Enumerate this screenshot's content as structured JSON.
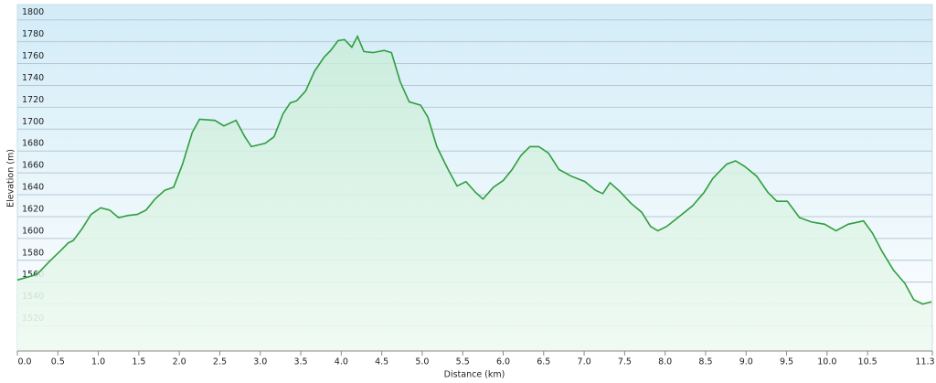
{
  "chart_data": {
    "type": "area",
    "title_y": "Elevation (m)",
    "title_x": "Distance  (km)",
    "color": "#2e9e3e",
    "grid": true,
    "xlim": [
      0,
      11.3
    ],
    "ylim": [
      1497,
      1814
    ],
    "xticks": [
      {
        "value": 0,
        "label": "0.0"
      },
      0.5,
      {
        "value": 1,
        "label": "1.0"
      },
      1.5,
      {
        "value": 2,
        "label": "2.0"
      },
      2.5,
      {
        "value": 3,
        "label": "3.0"
      },
      3.5,
      {
        "value": 4,
        "label": "4.0"
      },
      4.5,
      {
        "value": 5,
        "label": "5.0"
      },
      5.5,
      {
        "value": 6,
        "label": "6.0"
      },
      6.5,
      {
        "value": 7,
        "label": "7.0"
      },
      7.5,
      {
        "value": 8,
        "label": "8.0"
      },
      8.5,
      {
        "value": 9,
        "label": "9.0"
      },
      9.5,
      {
        "value": 10,
        "label": "10.0"
      },
      10.5,
      11.3
    ],
    "yticks": [
      1520,
      1540,
      1560,
      1580,
      1600,
      1620,
      1640,
      1660,
      1680,
      1700,
      1720,
      1740,
      1760,
      1780,
      1800
    ],
    "x": [
      0,
      0.24,
      0.41,
      0.55,
      0.63,
      0.69,
      0.8,
      0.91,
      1.03,
      1.14,
      1.25,
      1.37,
      1.48,
      1.59,
      1.7,
      1.82,
      1.93,
      2.04,
      2.16,
      2.25,
      2.44,
      2.55,
      2.7,
      2.81,
      2.89,
      3.06,
      3.17,
      3.28,
      3.37,
      3.45,
      3.56,
      3.67,
      3.79,
      3.87,
      3.96,
      4.04,
      4.13,
      4.2,
      4.28,
      4.39,
      4.53,
      4.62,
      4.73,
      4.84,
      4.98,
      5.07,
      5.18,
      5.32,
      5.43,
      5.54,
      5.66,
      5.75,
      5.88,
      6.0,
      6.11,
      6.22,
      6.33,
      6.44,
      6.56,
      6.69,
      6.84,
      7.01,
      7.14,
      7.23,
      7.32,
      7.44,
      7.58,
      7.71,
      7.82,
      7.91,
      8.02,
      8.19,
      8.34,
      8.48,
      8.59,
      8.76,
      8.87,
      8.98,
      9.13,
      9.27,
      9.38,
      9.51,
      9.66,
      9.81,
      9.97,
      10.11,
      10.26,
      10.45,
      10.56,
      10.68,
      10.82,
      10.96,
      11.07,
      11.18,
      11.29
    ],
    "values": [
      1562,
      1567,
      1580,
      1590,
      1596,
      1598,
      1609,
      1622,
      1628,
      1626,
      1619,
      1621,
      1622,
      1626,
      1636,
      1644,
      1647,
      1668,
      1697,
      1709,
      1708,
      1703,
      1708,
      1693,
      1684,
      1687,
      1693,
      1714,
      1724,
      1726,
      1735,
      1753,
      1766,
      1772,
      1781,
      1782,
      1775,
      1785,
      1771,
      1770,
      1772,
      1770,
      1743,
      1725,
      1722,
      1711,
      1684,
      1663,
      1648,
      1652,
      1642,
      1636,
      1647,
      1653,
      1663,
      1676,
      1684,
      1684,
      1678,
      1663,
      1657,
      1652,
      1644,
      1641,
      1651,
      1643,
      1632,
      1624,
      1611,
      1607,
      1611,
      1621,
      1630,
      1642,
      1655,
      1668,
      1671,
      1666,
      1657,
      1642,
      1634,
      1634,
      1619,
      1615,
      1613,
      1607,
      1613,
      1616,
      1605,
      1588,
      1571,
      1559,
      1544,
      1540,
      1542
    ]
  }
}
